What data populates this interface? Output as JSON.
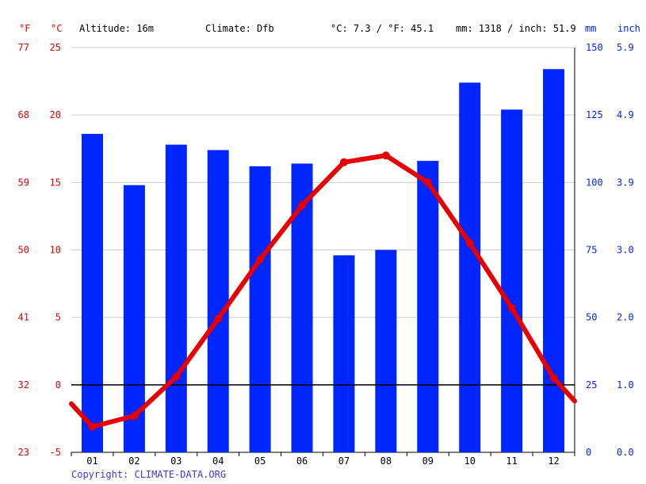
{
  "header": {
    "unit_f": "°F",
    "unit_c": "°C",
    "altitude": "Altitude: 16m",
    "climate": "Climate: Dfb",
    "temp_avg": "°C: 7.3 / °F: 45.1",
    "precip_total": "mm: 1318 / inch: 51.9",
    "unit_mm": "mm",
    "unit_inch": "inch"
  },
  "footer": {
    "copyright": "Copyright: CLIMATE-DATA.ORG"
  },
  "colors": {
    "temperature": "#e60000",
    "precipitation": "#0026ff",
    "axis_temp": "#e60000",
    "axis_precip": "#0026ff"
  },
  "chart_data": {
    "type": "bar",
    "categories": [
      "01",
      "02",
      "03",
      "04",
      "05",
      "06",
      "07",
      "08",
      "09",
      "10",
      "11",
      "12"
    ],
    "series": [
      {
        "type": "bar",
        "axis": "precipitation_mm",
        "values": [
          118,
          99,
          114,
          112,
          106,
          107,
          73,
          75,
          108,
          137,
          127,
          142
        ]
      },
      {
        "type": "line",
        "axis": "temperature_c",
        "values": [
          -3.1,
          -2.3,
          0.6,
          4.9,
          9.3,
          13.3,
          16.5,
          17.0,
          15.0,
          10.5,
          5.7,
          0.5
        ]
      }
    ],
    "line_edge_values": {
      "start": -1.4,
      "end": -1.2
    },
    "axes": {
      "temperature_c": {
        "ylim": [
          -5,
          25
        ],
        "ticks": [
          "25",
          "20",
          "15",
          "10",
          "5",
          "0",
          "-5"
        ]
      },
      "temperature_f": {
        "ticks": [
          "77",
          "68",
          "59",
          "50",
          "41",
          "32",
          "23"
        ]
      },
      "precipitation_mm": {
        "ylim": [
          0,
          150
        ],
        "ticks": [
          "150",
          "125",
          "100",
          "75",
          "50",
          "25",
          "0"
        ]
      },
      "precipitation_inch": {
        "ticks": [
          "5.9",
          "4.9",
          "3.9",
          "3.0",
          "2.0",
          "1.0",
          "0.0"
        ]
      }
    },
    "grid": true
  }
}
